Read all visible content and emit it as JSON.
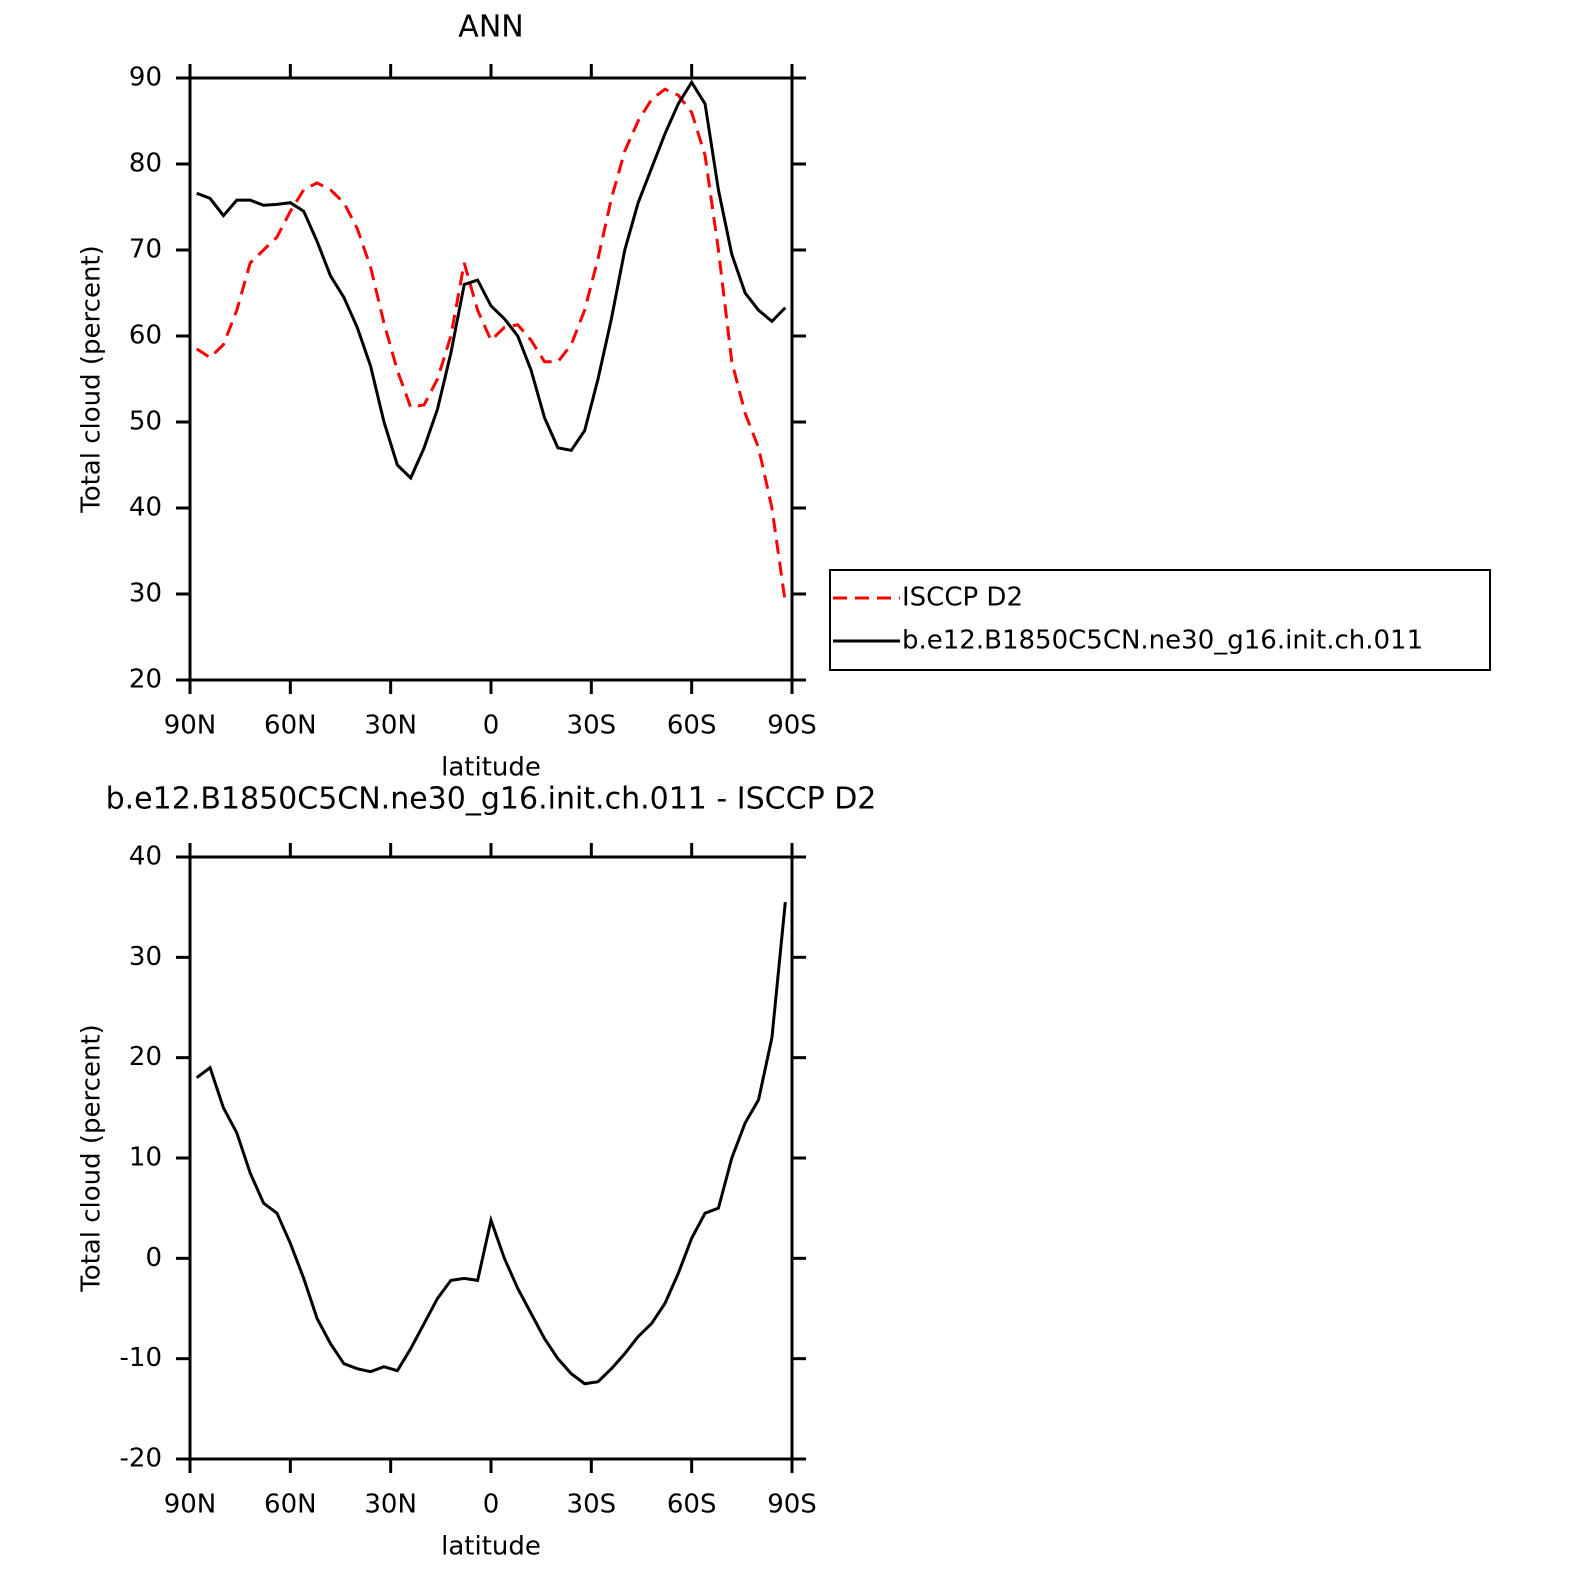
{
  "chart_data": [
    {
      "type": "line",
      "title": "ANN",
      "xlabel": "latitude",
      "ylabel": "Total cloud (percent)",
      "x": [
        88,
        84,
        80,
        76,
        72,
        68,
        64,
        60,
        56,
        52,
        48,
        44,
        40,
        36,
        32,
        28,
        24,
        20,
        16,
        12,
        8,
        4,
        0,
        -4,
        -8,
        -12,
        -16,
        -20,
        -24,
        -28,
        -32,
        -36,
        -40,
        -44,
        -48,
        -52,
        -56,
        -60,
        -64,
        -68,
        -72,
        -76,
        -80,
        -84,
        -88
      ],
      "xlim": [
        90,
        -90
      ],
      "xticks": [
        {
          "value": 90,
          "label": "90N"
        },
        {
          "value": 60,
          "label": "60N"
        },
        {
          "value": 30,
          "label": "30N"
        },
        0,
        {
          "value": -30,
          "label": "30S"
        },
        {
          "value": -60,
          "label": "60S"
        },
        {
          "value": -90,
          "label": "90S"
        }
      ],
      "ylim": [
        20,
        90
      ],
      "yticks": [
        20,
        30,
        40,
        50,
        60,
        70,
        80,
        90
      ],
      "legend": "right",
      "series": [
        {
          "name": "ISCCP D2",
          "color": "#ff0000",
          "dash": true,
          "values": [
            58.5,
            57.5,
            59,
            63,
            68.5,
            70,
            71.5,
            74.5,
            77,
            77.8,
            77,
            75.5,
            72.5,
            68,
            61.5,
            56,
            51.7,
            52,
            55,
            60,
            68.5,
            63,
            59.5,
            61,
            61.3,
            59.5,
            57,
            57,
            59,
            63,
            69,
            76,
            81.5,
            85,
            87.5,
            88.7,
            88,
            86,
            81,
            70,
            57,
            51,
            47,
            40,
            29
          ]
        },
        {
          "name": "b.e12.B1850C5CN.ne30_g16.init.ch.011",
          "color": "#000000",
          "dash": false,
          "values": [
            76.6,
            76,
            74,
            75.8,
            75.8,
            75.2,
            75.3,
            75.5,
            74.5,
            71,
            67,
            64.5,
            61,
            56.5,
            50,
            45,
            43.5,
            47,
            51.5,
            58,
            66,
            66.5,
            63.5,
            62,
            60,
            56,
            50.5,
            47,
            46.7,
            49,
            55,
            62,
            70,
            75.5,
            79.5,
            83.5,
            87,
            89.5,
            87,
            77,
            69.5,
            65,
            63,
            61.7,
            63.3
          ]
        }
      ]
    },
    {
      "type": "line",
      "title": "b.e12.B1850C5CN.ne30_g16.init.ch.011 - ISCCP D2",
      "xlabel": "latitude",
      "ylabel": "Total cloud (percent)",
      "x": [
        88,
        84,
        80,
        76,
        72,
        68,
        64,
        60,
        56,
        52,
        48,
        44,
        40,
        36,
        32,
        28,
        24,
        20,
        16,
        12,
        8,
        4,
        0,
        -4,
        -8,
        -12,
        -16,
        -20,
        -24,
        -28,
        -32,
        -36,
        -40,
        -44,
        -48,
        -52,
        -56,
        -60,
        -64,
        -68,
        -72,
        -76,
        -80,
        -84,
        -88
      ],
      "xlim": [
        90,
        -90
      ],
      "xticks": [
        {
          "value": 90,
          "label": "90N"
        },
        {
          "value": 60,
          "label": "60N"
        },
        {
          "value": 30,
          "label": "30N"
        },
        0,
        {
          "value": -30,
          "label": "30S"
        },
        {
          "value": -60,
          "label": "60S"
        },
        {
          "value": -90,
          "label": "90S"
        }
      ],
      "ylim": [
        -20,
        40
      ],
      "yticks": [
        -20,
        -10,
        0,
        10,
        20,
        30,
        40
      ],
      "color": "#000000",
      "values": [
        18,
        19,
        15,
        12.5,
        8.5,
        5.5,
        4.5,
        1.5,
        -2,
        -6,
        -8.5,
        -10.5,
        -11,
        -11.3,
        -10.8,
        -11.2,
        -9,
        -6.5,
        -4,
        -2.2,
        -2,
        -2.2,
        3.8,
        0,
        -3,
        -5.5,
        -8,
        -10,
        -11.5,
        -12.5,
        -12.3,
        -11,
        -9.5,
        -7.8,
        -6.5,
        -4.5,
        -1.5,
        2,
        4.5,
        5,
        10,
        13.5,
        15.8,
        22,
        35.5
      ]
    }
  ]
}
